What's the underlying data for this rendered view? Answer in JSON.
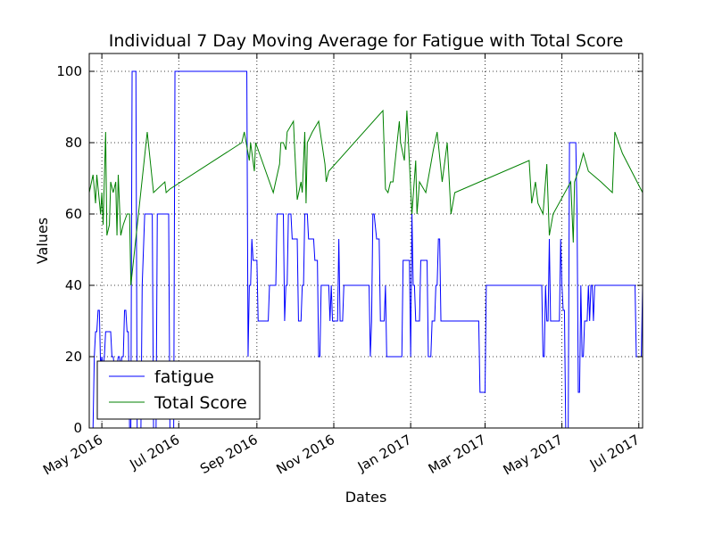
{
  "chart_data": {
    "type": "line",
    "title": "Individual 7 Day Moving Average for Fatigue with Total Score",
    "xlabel": "Dates",
    "ylabel": "Values",
    "xlim": [
      "2016-04-21",
      "2017-07-04"
    ],
    "ylim": [
      0,
      105
    ],
    "y_ticks": [
      0,
      20,
      40,
      60,
      80,
      100
    ],
    "x_ticks": [
      {
        "date": "2016-05-01",
        "label": "May 2016"
      },
      {
        "date": "2016-07-01",
        "label": "Jul 2016"
      },
      {
        "date": "2016-09-01",
        "label": "Sep 2016"
      },
      {
        "date": "2016-11-01",
        "label": "Nov 2016"
      },
      {
        "date": "2017-01-01",
        "label": "Jan 2017"
      },
      {
        "date": "2017-03-01",
        "label": "Mar 2017"
      },
      {
        "date": "2017-05-01",
        "label": "May 2017"
      },
      {
        "date": "2017-07-01",
        "label": "Jul 2017"
      }
    ],
    "grid": true,
    "legend_position": "lower-left",
    "series": [
      {
        "name": "fatigue",
        "color": "#0000ff",
        "points": [
          [
            "2016-04-24",
            0
          ],
          [
            "2016-04-25",
            20
          ],
          [
            "2016-04-26",
            27
          ],
          [
            "2016-04-27",
            27
          ],
          [
            "2016-04-28",
            33
          ],
          [
            "2016-04-29",
            33
          ],
          [
            "2016-04-30",
            17
          ],
          [
            "2016-05-01",
            20
          ],
          [
            "2016-05-02",
            17
          ],
          [
            "2016-05-03",
            20
          ],
          [
            "2016-05-04",
            27
          ],
          [
            "2016-05-05",
            27
          ],
          [
            "2016-05-06",
            27
          ],
          [
            "2016-05-07",
            27
          ],
          [
            "2016-05-08",
            27
          ],
          [
            "2016-05-09",
            20
          ],
          [
            "2016-05-10",
            20
          ],
          [
            "2016-05-11",
            17
          ],
          [
            "2016-05-12",
            17
          ],
          [
            "2016-05-13",
            17
          ],
          [
            "2016-05-14",
            20
          ],
          [
            "2016-05-15",
            20
          ],
          [
            "2016-05-16",
            17
          ],
          [
            "2016-05-17",
            20
          ],
          [
            "2016-05-18",
            20
          ],
          [
            "2016-05-19",
            33
          ],
          [
            "2016-05-20",
            33
          ],
          [
            "2016-05-21",
            27
          ],
          [
            "2016-05-22",
            27
          ],
          [
            "2016-05-23",
            0
          ],
          [
            "2016-05-24",
            0
          ],
          [
            "2016-05-25",
            100
          ],
          [
            "2016-05-28",
            100
          ],
          [
            "2016-05-29",
            0
          ],
          [
            "2016-06-01",
            0
          ],
          [
            "2016-06-02",
            40
          ],
          [
            "2016-06-04",
            60
          ],
          [
            "2016-06-10",
            60
          ],
          [
            "2016-06-11",
            0
          ],
          [
            "2016-06-13",
            0
          ],
          [
            "2016-06-14",
            60
          ],
          [
            "2016-06-23",
            60
          ],
          [
            "2016-06-24",
            0
          ],
          [
            "2016-06-27",
            0
          ],
          [
            "2016-06-28",
            100
          ],
          [
            "2016-08-24",
            100
          ],
          [
            "2016-08-25",
            20
          ],
          [
            "2016-08-26",
            40
          ],
          [
            "2016-08-27",
            40
          ],
          [
            "2016-08-28",
            53
          ],
          [
            "2016-08-29",
            47
          ],
          [
            "2016-09-01",
            47
          ],
          [
            "2016-09-02",
            30
          ],
          [
            "2016-09-10",
            30
          ],
          [
            "2016-09-11",
            40
          ],
          [
            "2016-09-16",
            40
          ],
          [
            "2016-09-17",
            60
          ],
          [
            "2016-09-22",
            60
          ],
          [
            "2016-09-23",
            30
          ],
          [
            "2016-09-24",
            40
          ],
          [
            "2016-09-25",
            40
          ],
          [
            "2016-09-26",
            60
          ],
          [
            "2016-09-28",
            60
          ],
          [
            "2016-09-29",
            53
          ],
          [
            "2016-10-03",
            53
          ],
          [
            "2016-10-04",
            30
          ],
          [
            "2016-10-06",
            30
          ],
          [
            "2016-10-07",
            40
          ],
          [
            "2016-10-08",
            40
          ],
          [
            "2016-10-09",
            60
          ],
          [
            "2016-10-11",
            60
          ],
          [
            "2016-10-12",
            53
          ],
          [
            "2016-10-16",
            53
          ],
          [
            "2016-10-17",
            47
          ],
          [
            "2016-10-19",
            47
          ],
          [
            "2016-10-20",
            20
          ],
          [
            "2016-10-21",
            20
          ],
          [
            "2016-10-22",
            40
          ],
          [
            "2016-10-28",
            40
          ],
          [
            "2016-10-29",
            30
          ],
          [
            "2016-10-30",
            40
          ],
          [
            "2016-10-31",
            30
          ],
          [
            "2016-11-04",
            30
          ],
          [
            "2016-11-05",
            53
          ],
          [
            "2016-11-06",
            30
          ],
          [
            "2016-11-08",
            30
          ],
          [
            "2016-11-09",
            40
          ],
          [
            "2016-11-29",
            40
          ],
          [
            "2016-11-30",
            20
          ],
          [
            "2016-12-01",
            30
          ],
          [
            "2016-12-02",
            60
          ],
          [
            "2016-12-03",
            60
          ],
          [
            "2016-12-05",
            53
          ],
          [
            "2016-12-07",
            53
          ],
          [
            "2016-12-08",
            30
          ],
          [
            "2016-12-11",
            30
          ],
          [
            "2016-12-12",
            40
          ],
          [
            "2016-12-13",
            20
          ],
          [
            "2016-12-25",
            20
          ],
          [
            "2016-12-26",
            47
          ],
          [
            "2016-12-31",
            47
          ],
          [
            "2017-01-01",
            20
          ],
          [
            "2017-01-02",
            60
          ],
          [
            "2017-01-03",
            40
          ],
          [
            "2017-01-04",
            40
          ],
          [
            "2017-01-05",
            30
          ],
          [
            "2017-01-08",
            30
          ],
          [
            "2017-01-09",
            47
          ],
          [
            "2017-01-14",
            47
          ],
          [
            "2017-01-15",
            20
          ],
          [
            "2017-01-17",
            20
          ],
          [
            "2017-01-18",
            30
          ],
          [
            "2017-01-20",
            30
          ],
          [
            "2017-01-21",
            40
          ],
          [
            "2017-01-22",
            40
          ],
          [
            "2017-01-23",
            53
          ],
          [
            "2017-01-24",
            53
          ],
          [
            "2017-01-25",
            30
          ],
          [
            "2017-02-24",
            30
          ],
          [
            "2017-02-25",
            10
          ],
          [
            "2017-03-01",
            10
          ],
          [
            "2017-03-02",
            40
          ],
          [
            "2017-04-15",
            40
          ],
          [
            "2017-04-16",
            20
          ],
          [
            "2017-04-17",
            20
          ],
          [
            "2017-04-18",
            40
          ],
          [
            "2017-04-19",
            30
          ],
          [
            "2017-04-20",
            30
          ],
          [
            "2017-04-21",
            53
          ],
          [
            "2017-04-22",
            30
          ],
          [
            "2017-04-29",
            30
          ],
          [
            "2017-04-30",
            53
          ],
          [
            "2017-05-01",
            40
          ],
          [
            "2017-05-02",
            33
          ],
          [
            "2017-05-03",
            33
          ],
          [
            "2017-05-04",
            0
          ],
          [
            "2017-05-06",
            0
          ],
          [
            "2017-05-07",
            80
          ],
          [
            "2017-05-12",
            80
          ],
          [
            "2017-05-13",
            60
          ],
          [
            "2017-05-14",
            10
          ],
          [
            "2017-05-15",
            10
          ],
          [
            "2017-05-16",
            40
          ],
          [
            "2017-05-17",
            20
          ],
          [
            "2017-05-18",
            20
          ],
          [
            "2017-05-19",
            30
          ],
          [
            "2017-05-21",
            30
          ],
          [
            "2017-05-22",
            40
          ],
          [
            "2017-05-23",
            30
          ],
          [
            "2017-05-24",
            40
          ],
          [
            "2017-05-25",
            40
          ],
          [
            "2017-05-26",
            30
          ],
          [
            "2017-05-27",
            40
          ],
          [
            "2017-06-28",
            40
          ],
          [
            "2017-06-29",
            20
          ],
          [
            "2017-07-03",
            20
          ],
          [
            "2017-07-04",
            40
          ]
        ]
      },
      {
        "name": "Total Score",
        "color": "#008000",
        "points": [
          [
            "2016-04-21",
            66
          ],
          [
            "2016-04-24",
            71
          ],
          [
            "2016-04-26",
            63
          ],
          [
            "2016-04-27",
            71
          ],
          [
            "2016-04-30",
            60
          ],
          [
            "2016-05-01",
            66
          ],
          [
            "2016-05-02",
            57
          ],
          [
            "2016-05-04",
            83
          ],
          [
            "2016-05-05",
            54
          ],
          [
            "2016-05-07",
            57
          ],
          [
            "2016-05-08",
            69
          ],
          [
            "2016-05-10",
            66
          ],
          [
            "2016-05-12",
            69
          ],
          [
            "2016-05-13",
            54
          ],
          [
            "2016-05-14",
            71
          ],
          [
            "2016-05-16",
            54
          ],
          [
            "2016-05-18",
            57
          ],
          [
            "2016-05-21",
            60
          ],
          [
            "2016-05-23",
            60
          ],
          [
            "2016-05-24",
            40
          ],
          [
            "2016-06-06",
            83
          ],
          [
            "2016-06-11",
            66
          ],
          [
            "2016-06-20",
            69
          ],
          [
            "2016-06-21",
            66
          ],
          [
            "2016-06-24",
            67
          ],
          [
            "2016-08-20",
            80
          ],
          [
            "2016-08-22",
            83
          ],
          [
            "2016-08-25",
            77
          ],
          [
            "2016-08-26",
            75
          ],
          [
            "2016-08-27",
            80
          ],
          [
            "2016-08-30",
            72
          ],
          [
            "2016-08-31",
            80
          ],
          [
            "2016-09-14",
            66
          ],
          [
            "2016-09-19",
            74
          ],
          [
            "2016-09-20",
            80
          ],
          [
            "2016-09-22",
            80
          ],
          [
            "2016-09-24",
            78
          ],
          [
            "2016-09-25",
            83
          ],
          [
            "2016-09-30",
            86
          ],
          [
            "2016-10-01",
            78
          ],
          [
            "2016-10-03",
            64
          ],
          [
            "2016-10-06",
            69
          ],
          [
            "2016-10-07",
            66
          ],
          [
            "2016-10-09",
            83
          ],
          [
            "2016-10-10",
            63
          ],
          [
            "2016-10-11",
            80
          ],
          [
            "2016-10-15",
            83
          ],
          [
            "2016-10-20",
            86
          ],
          [
            "2016-10-25",
            74
          ],
          [
            "2016-10-26",
            69
          ],
          [
            "2016-10-28",
            72
          ],
          [
            "2016-12-10",
            89
          ],
          [
            "2016-12-12",
            67
          ],
          [
            "2016-12-14",
            66
          ],
          [
            "2016-12-16",
            69
          ],
          [
            "2016-12-18",
            69
          ],
          [
            "2016-12-23",
            86
          ],
          [
            "2016-12-24",
            80
          ],
          [
            "2016-12-27",
            75
          ],
          [
            "2016-12-29",
            89
          ],
          [
            "2017-01-02",
            60
          ],
          [
            "2017-01-05",
            75
          ],
          [
            "2017-01-06",
            60
          ],
          [
            "2017-01-08",
            69
          ],
          [
            "2017-01-13",
            66
          ],
          [
            "2017-01-19",
            78
          ],
          [
            "2017-01-22",
            83
          ],
          [
            "2017-01-26",
            69
          ],
          [
            "2017-01-30",
            80
          ],
          [
            "2017-02-02",
            60
          ],
          [
            "2017-02-05",
            66
          ],
          [
            "2017-04-05",
            75
          ],
          [
            "2017-04-07",
            63
          ],
          [
            "2017-04-10",
            69
          ],
          [
            "2017-04-12",
            63
          ],
          [
            "2017-04-16",
            60
          ],
          [
            "2017-04-19",
            74
          ],
          [
            "2017-04-21",
            54
          ],
          [
            "2017-04-24",
            60
          ],
          [
            "2017-05-08",
            69
          ],
          [
            "2017-05-10",
            52
          ],
          [
            "2017-05-11",
            69
          ],
          [
            "2017-05-15",
            73
          ],
          [
            "2017-05-18",
            77
          ],
          [
            "2017-05-22",
            72
          ],
          [
            "2017-06-01",
            69
          ],
          [
            "2017-06-10",
            66
          ],
          [
            "2017-06-12",
            83
          ],
          [
            "2017-06-18",
            77
          ],
          [
            "2017-07-04",
            66
          ]
        ]
      }
    ]
  }
}
